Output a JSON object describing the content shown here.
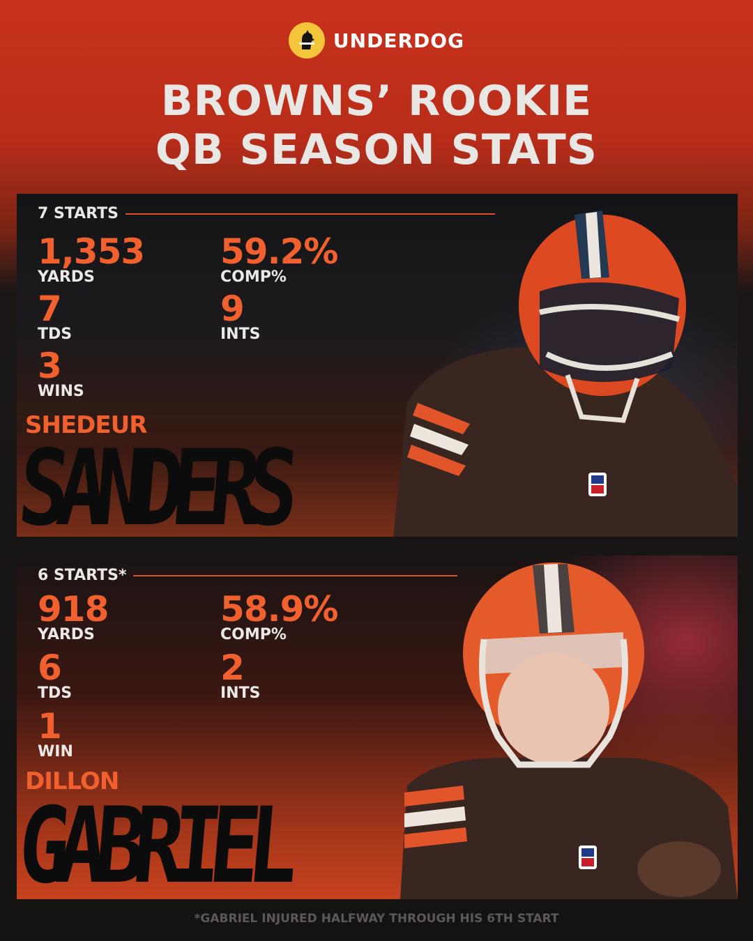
{
  "brand": {
    "name": "UNDERDOG",
    "logo_icon": "underdog-dog-icon",
    "logo_color": "#f4c43a"
  },
  "headline": {
    "line1": "BROWNS’ ROOKIE",
    "line2": "QB SEASON STATS"
  },
  "players": [
    {
      "starts": "7 STARTS",
      "first_name": "SHEDEUR",
      "last_name": "SANDERS",
      "stats": {
        "yards": {
          "value": "1,353",
          "label": "YARDS"
        },
        "comp": {
          "value": "59.2%",
          "label": "COMP%"
        },
        "tds": {
          "value": "7",
          "label": "TDS"
        },
        "ints": {
          "value": "9",
          "label": "INTS"
        },
        "wins": {
          "value": "3",
          "label": "WINS"
        }
      }
    },
    {
      "starts": "6 STARTS*",
      "first_name": "DILLON",
      "last_name": "GABRIEL",
      "stats": {
        "yards": {
          "value": "918",
          "label": "YARDS"
        },
        "comp": {
          "value": "58.9%",
          "label": "COMP%"
        },
        "tds": {
          "value": "6",
          "label": "TDS"
        },
        "ints": {
          "value": "2",
          "label": "INTS"
        },
        "wins": {
          "value": "1",
          "label": "WIN"
        }
      }
    }
  ],
  "footnote": "*GABRIEL INJURED HALFWAY THROUGH HIS 6TH START",
  "colors": {
    "accent_orange": "#f0612f",
    "brand_yellow": "#f4c43a",
    "helmet_orange": "#e2552a",
    "jersey_brown": "#3a2620"
  }
}
